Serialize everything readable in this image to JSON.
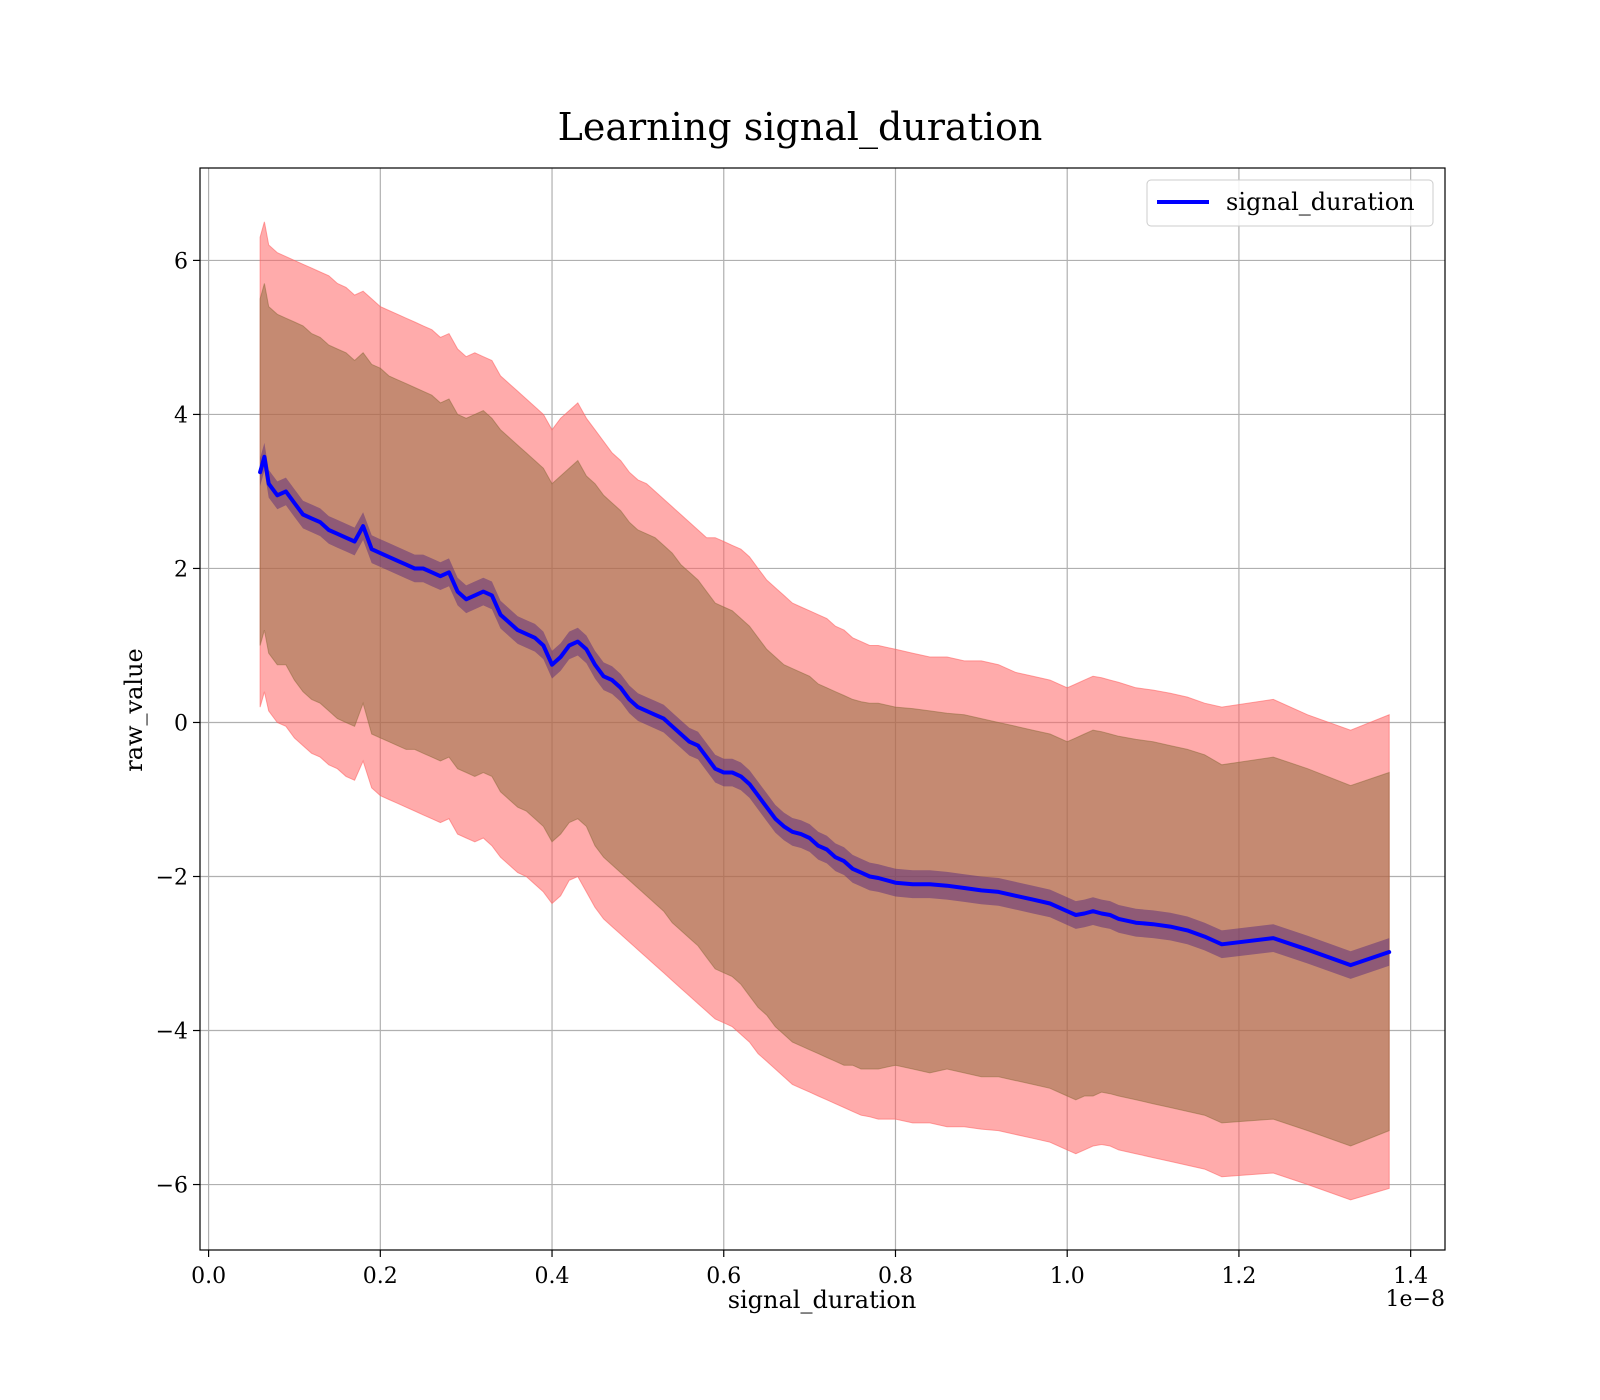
{
  "chart_data": {
    "type": "line",
    "title": "Learning signal_duration",
    "xlabel": "signal_duration",
    "ylabel": "raw_value",
    "x_offset_label": "1e−8",
    "xlim": [
      -0.01,
      1.44
    ],
    "ylim": [
      -6.85,
      7.2
    ],
    "xticks": [
      0.0,
      0.2,
      0.4,
      0.6,
      0.8,
      1.0,
      1.2,
      1.4
    ],
    "xtick_labels": [
      "0.0",
      "0.2",
      "0.4",
      "0.6",
      "0.8",
      "1.0",
      "1.2",
      "1.4"
    ],
    "yticks": [
      6,
      4,
      2,
      0,
      -2,
      -4,
      -6
    ],
    "ytick_labels": [
      "6",
      "4",
      "2",
      "0",
      "−2",
      "−4",
      "−6"
    ],
    "grid": true,
    "legend_position": "top-right",
    "colors": {
      "line": "#0000ff",
      "outer_band": "#ff6666",
      "inner_band": "#8b6a3a",
      "mean_band": "#5a2a7a",
      "grid": "#b0b0b0"
    },
    "series": [
      {
        "name": "signal_duration",
        "x": [
          0.06,
          0.065,
          0.07,
          0.08,
          0.09,
          0.1,
          0.11,
          0.12,
          0.13,
          0.14,
          0.15,
          0.16,
          0.17,
          0.18,
          0.19,
          0.2,
          0.21,
          0.22,
          0.23,
          0.24,
          0.25,
          0.26,
          0.27,
          0.28,
          0.29,
          0.3,
          0.31,
          0.32,
          0.33,
          0.34,
          0.35,
          0.36,
          0.37,
          0.38,
          0.39,
          0.4,
          0.41,
          0.42,
          0.43,
          0.44,
          0.45,
          0.46,
          0.47,
          0.48,
          0.49,
          0.5,
          0.51,
          0.52,
          0.53,
          0.54,
          0.55,
          0.56,
          0.57,
          0.58,
          0.59,
          0.6,
          0.61,
          0.62,
          0.63,
          0.64,
          0.65,
          0.66,
          0.67,
          0.68,
          0.69,
          0.7,
          0.71,
          0.72,
          0.73,
          0.74,
          0.75,
          0.76,
          0.77,
          0.78,
          0.8,
          0.82,
          0.84,
          0.86,
          0.88,
          0.9,
          0.92,
          0.94,
          0.96,
          0.98,
          1.0,
          1.01,
          1.02,
          1.03,
          1.04,
          1.05,
          1.06,
          1.08,
          1.1,
          1.12,
          1.14,
          1.16,
          1.18,
          1.24,
          1.28,
          1.33,
          1.375
        ],
        "mean": [
          3.25,
          3.45,
          3.1,
          2.95,
          3.0,
          2.85,
          2.7,
          2.65,
          2.6,
          2.5,
          2.45,
          2.4,
          2.35,
          2.55,
          2.25,
          2.2,
          2.15,
          2.1,
          2.05,
          2.0,
          2.0,
          1.95,
          1.9,
          1.95,
          1.7,
          1.6,
          1.65,
          1.7,
          1.65,
          1.4,
          1.3,
          1.2,
          1.15,
          1.1,
          1.0,
          0.75,
          0.85,
          1.0,
          1.05,
          0.95,
          0.75,
          0.6,
          0.55,
          0.45,
          0.3,
          0.2,
          0.15,
          0.1,
          0.05,
          -0.05,
          -0.15,
          -0.25,
          -0.3,
          -0.45,
          -0.6,
          -0.65,
          -0.65,
          -0.7,
          -0.8,
          -0.95,
          -1.1,
          -1.25,
          -1.35,
          -1.42,
          -1.45,
          -1.5,
          -1.6,
          -1.65,
          -1.75,
          -1.8,
          -1.9,
          -1.95,
          -2.0,
          -2.02,
          -2.08,
          -2.1,
          -2.1,
          -2.12,
          -2.15,
          -2.18,
          -2.2,
          -2.25,
          -2.3,
          -2.35,
          -2.45,
          -2.5,
          -2.48,
          -2.45,
          -2.48,
          -2.5,
          -2.55,
          -2.6,
          -2.62,
          -2.65,
          -2.7,
          -2.78,
          -2.88,
          -2.8,
          -2.95,
          -3.15,
          -2.98
        ],
        "inner_upper": [
          5.5,
          5.7,
          5.4,
          5.3,
          5.25,
          5.2,
          5.15,
          5.05,
          5.0,
          4.9,
          4.85,
          4.8,
          4.7,
          4.8,
          4.65,
          4.6,
          4.5,
          4.45,
          4.4,
          4.35,
          4.3,
          4.25,
          4.15,
          4.2,
          4.0,
          3.95,
          4.0,
          4.05,
          3.95,
          3.8,
          3.7,
          3.6,
          3.5,
          3.4,
          3.3,
          3.1,
          3.2,
          3.3,
          3.4,
          3.2,
          3.1,
          2.95,
          2.85,
          2.75,
          2.6,
          2.5,
          2.45,
          2.4,
          2.3,
          2.2,
          2.05,
          1.95,
          1.85,
          1.7,
          1.55,
          1.5,
          1.45,
          1.35,
          1.25,
          1.1,
          0.95,
          0.85,
          0.75,
          0.7,
          0.65,
          0.6,
          0.5,
          0.45,
          0.4,
          0.35,
          0.3,
          0.27,
          0.25,
          0.25,
          0.2,
          0.18,
          0.15,
          0.12,
          0.1,
          0.05,
          0.0,
          -0.05,
          -0.1,
          -0.15,
          -0.25,
          -0.2,
          -0.15,
          -0.1,
          -0.12,
          -0.15,
          -0.18,
          -0.22,
          -0.25,
          -0.3,
          -0.35,
          -0.42,
          -0.55,
          -0.45,
          -0.6,
          -0.82,
          -0.65
        ],
        "inner_lower": [
          1.0,
          1.2,
          0.9,
          0.75,
          0.75,
          0.55,
          0.4,
          0.3,
          0.25,
          0.15,
          0.05,
          0.0,
          -0.05,
          0.25,
          -0.15,
          -0.2,
          -0.25,
          -0.3,
          -0.35,
          -0.35,
          -0.4,
          -0.45,
          -0.5,
          -0.45,
          -0.6,
          -0.65,
          -0.7,
          -0.65,
          -0.7,
          -0.9,
          -1.0,
          -1.1,
          -1.15,
          -1.25,
          -1.35,
          -1.55,
          -1.45,
          -1.3,
          -1.25,
          -1.35,
          -1.6,
          -1.75,
          -1.85,
          -1.95,
          -2.05,
          -2.15,
          -2.25,
          -2.35,
          -2.45,
          -2.6,
          -2.7,
          -2.8,
          -2.9,
          -3.05,
          -3.2,
          -3.25,
          -3.3,
          -3.4,
          -3.55,
          -3.7,
          -3.8,
          -3.95,
          -4.05,
          -4.15,
          -4.2,
          -4.25,
          -4.3,
          -4.35,
          -4.4,
          -4.45,
          -4.45,
          -4.5,
          -4.5,
          -4.5,
          -4.45,
          -4.5,
          -4.55,
          -4.5,
          -4.55,
          -4.6,
          -4.6,
          -4.65,
          -4.7,
          -4.75,
          -4.85,
          -4.9,
          -4.85,
          -4.85,
          -4.8,
          -4.82,
          -4.85,
          -4.9,
          -4.95,
          -5.0,
          -5.05,
          -5.1,
          -5.2,
          -5.15,
          -5.3,
          -5.5,
          -5.3
        ],
        "outer_upper": [
          6.3,
          6.5,
          6.2,
          6.1,
          6.05,
          6.0,
          5.95,
          5.9,
          5.85,
          5.8,
          5.7,
          5.65,
          5.55,
          5.6,
          5.5,
          5.4,
          5.35,
          5.3,
          5.25,
          5.2,
          5.15,
          5.1,
          5.0,
          5.05,
          4.85,
          4.75,
          4.8,
          4.75,
          4.7,
          4.5,
          4.4,
          4.3,
          4.2,
          4.1,
          4.0,
          3.8,
          3.95,
          4.05,
          4.15,
          3.95,
          3.8,
          3.65,
          3.5,
          3.4,
          3.25,
          3.15,
          3.1,
          3.0,
          2.9,
          2.8,
          2.7,
          2.6,
          2.5,
          2.4,
          2.4,
          2.35,
          2.3,
          2.25,
          2.15,
          2.0,
          1.85,
          1.75,
          1.65,
          1.55,
          1.5,
          1.45,
          1.4,
          1.35,
          1.25,
          1.2,
          1.1,
          1.05,
          1.0,
          1.0,
          0.95,
          0.9,
          0.85,
          0.85,
          0.8,
          0.8,
          0.75,
          0.65,
          0.6,
          0.55,
          0.45,
          0.5,
          0.55,
          0.6,
          0.58,
          0.55,
          0.52,
          0.45,
          0.42,
          0.38,
          0.33,
          0.25,
          0.2,
          0.3,
          0.1,
          -0.1,
          0.1
        ],
        "outer_lower": [
          0.2,
          0.4,
          0.15,
          0.0,
          -0.05,
          -0.2,
          -0.3,
          -0.4,
          -0.45,
          -0.55,
          -0.6,
          -0.7,
          -0.75,
          -0.5,
          -0.85,
          -0.95,
          -1.0,
          -1.05,
          -1.1,
          -1.15,
          -1.2,
          -1.25,
          -1.3,
          -1.25,
          -1.45,
          -1.5,
          -1.55,
          -1.5,
          -1.6,
          -1.75,
          -1.85,
          -1.95,
          -2.0,
          -2.1,
          -2.2,
          -2.35,
          -2.25,
          -2.05,
          -2.0,
          -2.2,
          -2.4,
          -2.55,
          -2.65,
          -2.75,
          -2.85,
          -2.95,
          -3.05,
          -3.15,
          -3.25,
          -3.35,
          -3.45,
          -3.55,
          -3.65,
          -3.75,
          -3.85,
          -3.9,
          -3.95,
          -4.05,
          -4.15,
          -4.3,
          -4.4,
          -4.5,
          -4.6,
          -4.7,
          -4.75,
          -4.8,
          -4.85,
          -4.9,
          -4.95,
          -5.0,
          -5.05,
          -5.1,
          -5.12,
          -5.15,
          -5.15,
          -5.2,
          -5.2,
          -5.25,
          -5.25,
          -5.28,
          -5.3,
          -5.35,
          -5.4,
          -5.45,
          -5.55,
          -5.6,
          -5.55,
          -5.5,
          -5.48,
          -5.5,
          -5.55,
          -5.6,
          -5.65,
          -5.7,
          -5.75,
          -5.8,
          -5.9,
          -5.85,
          -6.0,
          -6.2,
          -6.05
        ]
      }
    ]
  }
}
